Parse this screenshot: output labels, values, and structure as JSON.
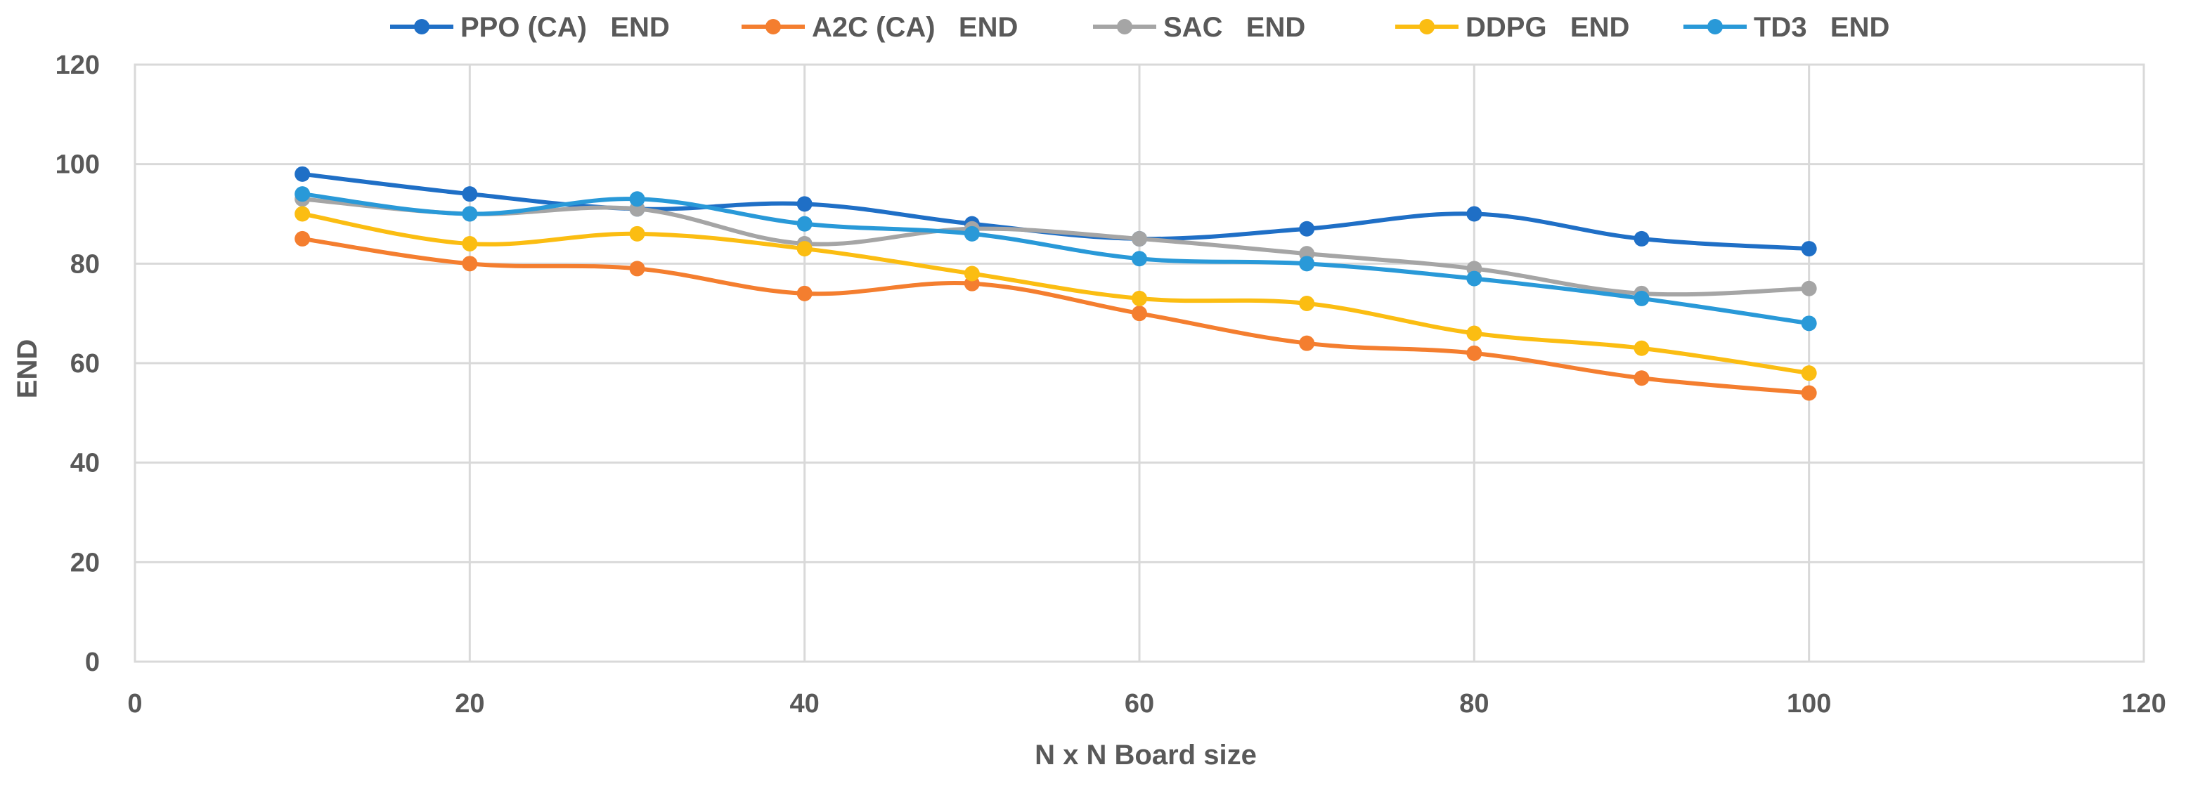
{
  "chart_data": {
    "type": "line",
    "title": "",
    "xlabel": "N x N Board size",
    "ylabel": "END",
    "xlim": [
      0,
      120
    ],
    "ylim": [
      0,
      120
    ],
    "x_ticks": [
      "0",
      "20",
      "40",
      "60",
      "80",
      "100",
      "120"
    ],
    "y_ticks": [
      "0",
      "20",
      "40",
      "60",
      "80",
      "100",
      "120"
    ],
    "grid": true,
    "legend_position": "top",
    "x": [
      10,
      20,
      30,
      40,
      50,
      60,
      70,
      80,
      90,
      100
    ],
    "series": [
      {
        "name": "PPO (CA)   END",
        "color": "#1f6fc6",
        "values": [
          98,
          94,
          91,
          92,
          88,
          85,
          87,
          90,
          85,
          83
        ]
      },
      {
        "name": "A2C (CA)   END",
        "color": "#f47e2f",
        "values": [
          85,
          80,
          79,
          74,
          76,
          70,
          64,
          62,
          57,
          54
        ]
      },
      {
        "name": "SAC   END",
        "color": "#a5a5a5",
        "values": [
          93,
          90,
          91,
          84,
          87,
          85,
          82,
          79,
          74,
          75
        ]
      },
      {
        "name": "DDPG   END",
        "color": "#fbbd12",
        "values": [
          90,
          84,
          86,
          83,
          78,
          73,
          72,
          66,
          63,
          58
        ]
      },
      {
        "name": "TD3   END",
        "color": "#2999d8",
        "values": [
          94,
          90,
          93,
          88,
          86,
          81,
          80,
          77,
          73,
          68
        ]
      }
    ]
  }
}
